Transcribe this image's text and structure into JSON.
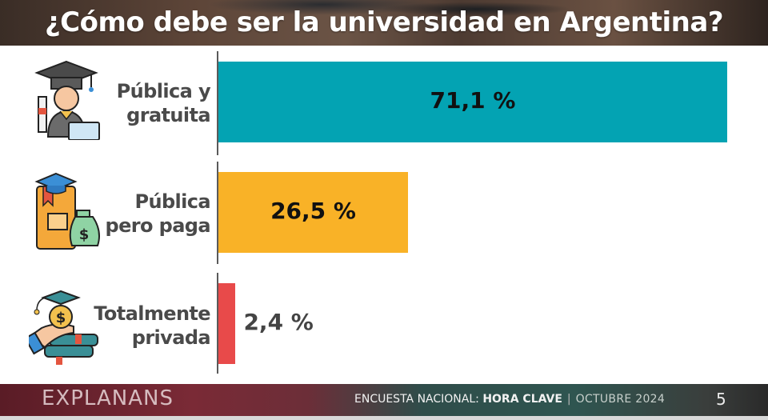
{
  "header": {
    "title": "¿Cómo debe ser la universidad en Argentina?"
  },
  "chart_data": {
    "type": "bar",
    "orientation": "horizontal",
    "title": "¿Cómo debe ser la universidad en Argentina?",
    "categories": [
      "Pública y gratuita",
      "Pública pero paga",
      "Totalmente privada"
    ],
    "category_lines": [
      [
        "Pública y",
        "gratuita"
      ],
      [
        "Pública",
        "pero paga"
      ],
      [
        "Totalmente",
        "privada"
      ]
    ],
    "values": [
      71.1,
      26.5,
      2.4
    ],
    "value_labels": [
      "71,1 %",
      "26,5 %",
      "2,4 %"
    ],
    "colors": [
      "#03a3b3",
      "#f9b227",
      "#e84a4a"
    ],
    "icons": [
      "graduate-student-icon",
      "book-money-bag-icon",
      "hand-coin-books-icon"
    ],
    "unit": "%",
    "xlim": [
      0,
      71.1
    ],
    "xlabel": "",
    "ylabel": "",
    "grid": false,
    "legend": "none"
  },
  "footer": {
    "brand": "EXPLANANS",
    "survey_prefix": "ENCUESTA NACIONAL: ",
    "survey_name": "HORA CLAVE",
    "separator": "|",
    "date": "OCTUBRE 2024",
    "page": "5"
  }
}
